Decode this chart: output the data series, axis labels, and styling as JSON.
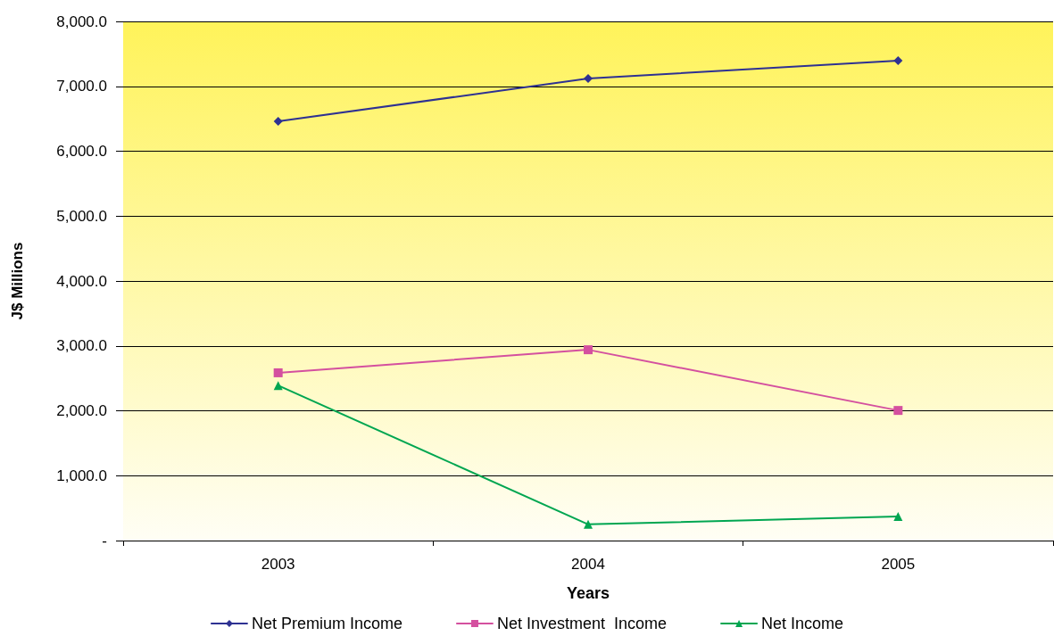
{
  "chart_data": {
    "type": "line",
    "xlabel": "Years",
    "ylabel": "J$ Millions",
    "categories": [
      "2003",
      "2004",
      "2005"
    ],
    "series": [
      {
        "name": "Net Premium Income",
        "color": "#2e3192",
        "marker": "diamond",
        "values": [
          6460,
          7120,
          7395
        ]
      },
      {
        "name": "Net Investment  Income",
        "color": "#d4509f",
        "marker": "square",
        "values": [
          2585,
          2940,
          2005
        ]
      },
      {
        "name": "Net Income",
        "color": "#00a651",
        "marker": "triangle",
        "values": [
          2390,
          250,
          370
        ]
      }
    ],
    "ylim": [
      0,
      8000
    ],
    "yticks": [
      {
        "value": 0,
        "label": "-"
      },
      {
        "value": 1000,
        "label": "1,000.0"
      },
      {
        "value": 2000,
        "label": "2,000.0"
      },
      {
        "value": 3000,
        "label": "3,000.0"
      },
      {
        "value": 4000,
        "label": "4,000.0"
      },
      {
        "value": 5000,
        "label": "5,000.0"
      },
      {
        "value": 6000,
        "label": "6,000.0"
      },
      {
        "value": 7000,
        "label": "7,000.0"
      },
      {
        "value": 8000,
        "label": "8,000.0"
      }
    ],
    "grid": "y",
    "legend": "bottom",
    "line_style": "solid"
  }
}
